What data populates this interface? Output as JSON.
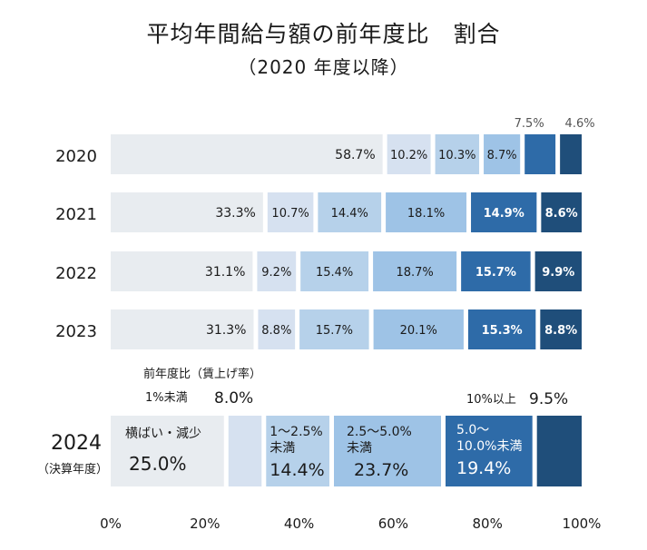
{
  "title": "平均年間給与額の前年度比　割合",
  "subtitle": "（2020 年度以降）",
  "colors": [
    "#e8ecf0",
    "#d6e1f0",
    "#b6d1ea",
    "#9ec3e6",
    "#2e6ba8",
    "#1f4e7a"
  ],
  "chart_data": {
    "type": "bar",
    "stacked": true,
    "orientation": "horizontal",
    "xlim": [
      0,
      100
    ],
    "x_ticks": [
      "0%",
      "20%",
      "40%",
      "60%",
      "80%",
      "100%"
    ],
    "categories": [
      "2020",
      "2021",
      "2022",
      "2023",
      "2024"
    ],
    "category_sublabels": {
      "2024": "（決算年度）"
    },
    "series": [
      {
        "name": "横ばい・減少",
        "values": [
          58.7,
          33.3,
          31.1,
          31.3,
          25.0
        ]
      },
      {
        "name": "1%未満",
        "values": [
          10.2,
          10.7,
          9.2,
          8.8,
          8.0
        ]
      },
      {
        "name": "1～2.5%未満",
        "values": [
          10.3,
          14.4,
          15.4,
          15.7,
          14.4
        ]
      },
      {
        "name": "2.5～5.0%未満",
        "values": [
          8.7,
          18.1,
          18.7,
          20.1,
          23.7
        ]
      },
      {
        "name": "5.0～10.0%未満",
        "values": [
          7.5,
          14.9,
          15.7,
          15.3,
          19.4
        ]
      },
      {
        "name": "10%以上",
        "values": [
          4.6,
          8.6,
          9.9,
          8.8,
          9.5
        ]
      }
    ],
    "value_labels": [
      [
        "58.7%",
        "10.2%",
        "10.3%",
        "8.7%",
        "7.5%",
        "4.6%"
      ],
      [
        "33.3%",
        "10.7%",
        "14.4%",
        "18.1%",
        "14.9%",
        "8.6%"
      ],
      [
        "31.1%",
        "9.2%",
        "15.4%",
        "18.7%",
        "15.7%",
        "9.9%"
      ],
      [
        "31.3%",
        "8.8%",
        "15.7%",
        "20.1%",
        "15.3%",
        "8.8%"
      ],
      [
        "25.0%",
        "8.0%",
        "14.4%",
        "23.7%",
        "19.4%",
        "9.5%"
      ]
    ],
    "annotations": {
      "legend_header": "前年度比（賃上げ率）",
      "label_1pct": "1%未満",
      "label_10pct": "10%以上"
    }
  }
}
